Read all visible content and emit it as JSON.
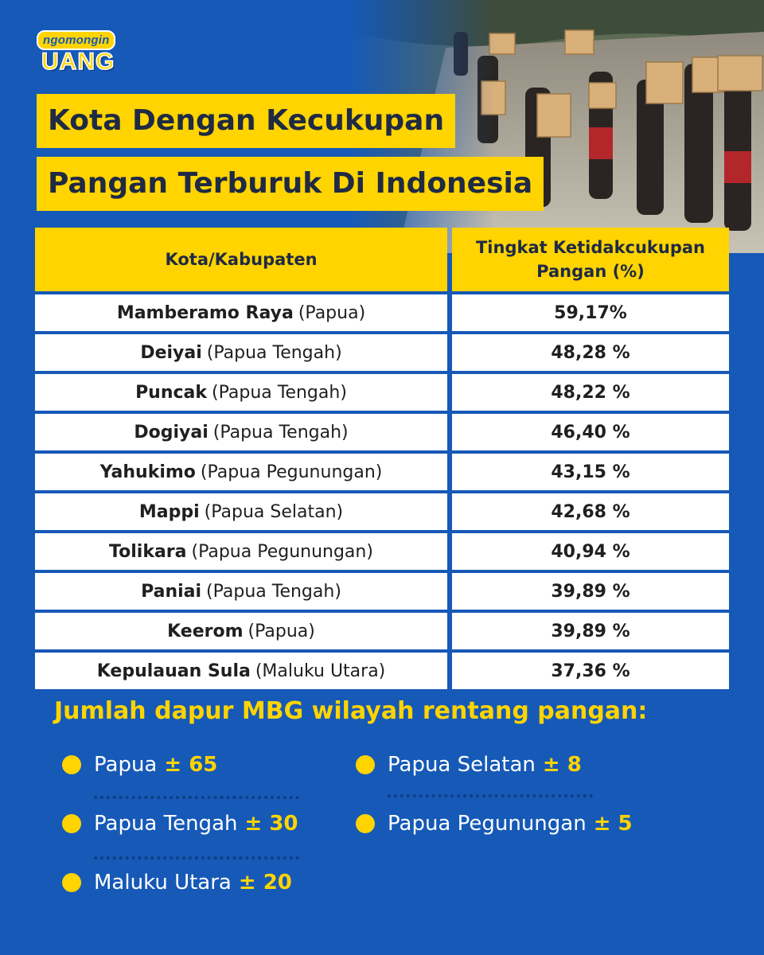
{
  "brand": {
    "small": "ngomongin",
    "big": "UANG"
  },
  "title": {
    "line1": "Kota Dengan Kecukupan",
    "line2": "Pangan Terburuk Di Indonesia"
  },
  "table": {
    "headers": [
      "Kota/Kabupaten",
      "Tingkat Ketidakcukupan Pangan (%)"
    ],
    "rows": [
      {
        "city": "Mamberamo Raya",
        "province": "(Papua)",
        "value": "59,17%"
      },
      {
        "city": "Deiyai",
        "province": "(Papua Tengah)",
        "value": "48,28 %"
      },
      {
        "city": "Puncak",
        "province": "(Papua Tengah)",
        "value": "48,22 %"
      },
      {
        "city": "Dogiyai",
        "province": "(Papua Tengah)",
        "value": "46,40 %"
      },
      {
        "city": "Yahukimo",
        "province": "(Papua Pegunungan)",
        "value": "43,15 %"
      },
      {
        "city": "Mappi",
        "province": "(Papua Selatan)",
        "value": "42,68 %"
      },
      {
        "city": "Tolikara",
        "province": "(Papua Pegunungan)",
        "value": "40,94 %"
      },
      {
        "city": "Paniai",
        "province": "(Papua Tengah)",
        "value": "39,89 %"
      },
      {
        "city": "Keerom",
        "province": "(Papua)",
        "value": "39,89 %"
      },
      {
        "city": "Kepulauan Sula",
        "province": "(Maluku Utara)",
        "value": "37,36 %"
      }
    ]
  },
  "mbg": {
    "heading": "Jumlah dapur MBG wilayah rentang pangan:",
    "items": [
      {
        "label": "Papua",
        "value": "± 65"
      },
      {
        "label": "Papua Tengah",
        "value": "± 30"
      },
      {
        "label": "Maluku Utara",
        "value": "± 20"
      },
      {
        "label": "Papua Selatan",
        "value": "± 8"
      },
      {
        "label": "Papua Pegunungan",
        "value": "± 5"
      }
    ]
  },
  "colors": {
    "background": "#1659b7",
    "accent": "#ffd400",
    "title_text": "#1f2a44"
  }
}
